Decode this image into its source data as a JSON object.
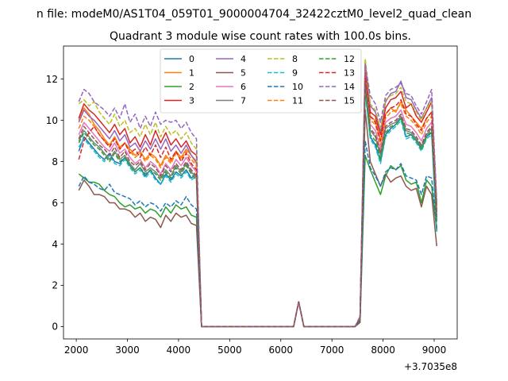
{
  "chart_data": {
    "type": "line",
    "suptitle": "n file: modeM0/AS1T04_059T01_9000004704_32422cztM0_level2_quad_clean",
    "title": "Quadrant 3 module wise count rates with 100.0s bins.",
    "xlabel": "",
    "ylabel": "",
    "x_offset_label": "+3.7035e8",
    "xlim": [
      1750,
      9450
    ],
    "ylim": [
      -0.6,
      13.6
    ],
    "x_ticks": [
      2000,
      3000,
      4000,
      5000,
      6000,
      7000,
      8000,
      9000
    ],
    "x_tick_labels": [
      "2000",
      "3000",
      "4000",
      "5000",
      "6000",
      "7000",
      "8000",
      "9000"
    ],
    "y_ticks": [
      0,
      2,
      4,
      6,
      8,
      10,
      12
    ],
    "y_tick_labels": [
      "0",
      "2",
      "4",
      "6",
      "8",
      "10",
      "12"
    ],
    "grid": false,
    "legend": {
      "placement": "top-center",
      "ncol": 4
    },
    "x": [
      2050,
      2150,
      2250,
      2350,
      2450,
      2550,
      2650,
      2750,
      2850,
      2950,
      3050,
      3150,
      3250,
      3350,
      3450,
      3550,
      3650,
      3750,
      3850,
      3950,
      4050,
      4150,
      4250,
      4350,
      4450,
      4550,
      4650,
      4750,
      4850,
      4950,
      5050,
      5150,
      5250,
      5350,
      5450,
      5550,
      5650,
      5750,
      5850,
      5950,
      6050,
      6150,
      6250,
      6350,
      6450,
      6550,
      6650,
      6750,
      6850,
      6950,
      7050,
      7150,
      7250,
      7350,
      7450,
      7550,
      7650,
      7750,
      7850,
      7950,
      8050,
      8150,
      8250,
      8350,
      8450,
      8550,
      8650,
      8750,
      8850,
      8950,
      9050
    ],
    "series": [
      {
        "name": "0",
        "color": "#1f77b4",
        "dash": "solid",
        "values": [
          8.5,
          9.2,
          8.9,
          8.6,
          8.3,
          8.1,
          8.4,
          8.0,
          7.9,
          8.2,
          7.8,
          7.5,
          7.7,
          7.3,
          7.6,
          7.2,
          6.9,
          7.4,
          7.1,
          7.5,
          7.3,
          7.6,
          7.2,
          7.4,
          0,
          0,
          0,
          0,
          0,
          0,
          0,
          0,
          0,
          0,
          0,
          0,
          0,
          0,
          0,
          0,
          0,
          0,
          0,
          1.2,
          0,
          0,
          0,
          0,
          0,
          0,
          0,
          0,
          0,
          0,
          0,
          0.3,
          11.5,
          9.2,
          8.8,
          8.0,
          9.3,
          9.6,
          9.8,
          10.1,
          9.2,
          9.3,
          9.0,
          8.6,
          9.2,
          9.4,
          4.6
        ]
      },
      {
        "name": "1",
        "color": "#ff7f0e",
        "dash": "solid",
        "values": [
          10.0,
          10.6,
          10.3,
          9.8,
          9.5,
          9.1,
          8.8,
          9.2,
          8.7,
          8.9,
          8.6,
          8.3,
          8.5,
          8.1,
          8.4,
          8.2,
          7.8,
          8.3,
          8.0,
          8.5,
          8.2,
          8.6,
          8.3,
          7.9,
          0,
          0,
          0,
          0,
          0,
          0,
          0,
          0,
          0,
          0,
          0,
          0,
          0,
          0,
          0,
          0,
          0,
          0,
          0,
          1.2,
          0,
          0,
          0,
          0,
          0,
          0,
          0,
          0,
          0,
          0,
          0,
          0.4,
          12.9,
          10.2,
          10.0,
          9.0,
          10.3,
          10.6,
          10.4,
          10.9,
          10.5,
          10.2,
          9.9,
          9.6,
          10.1,
          10.4,
          5.7
        ]
      },
      {
        "name": "2",
        "color": "#2ca02c",
        "dash": "solid",
        "values": [
          7.4,
          7.2,
          7.0,
          7.0,
          6.9,
          6.6,
          6.4,
          6.3,
          6.0,
          5.8,
          5.9,
          5.7,
          5.8,
          5.5,
          5.7,
          5.6,
          5.3,
          5.8,
          5.5,
          5.9,
          5.7,
          5.8,
          5.4,
          5.3,
          0,
          0,
          0,
          0,
          0,
          0,
          0,
          0,
          0,
          0,
          0,
          0,
          0,
          0,
          0,
          0,
          0,
          0,
          0,
          1.2,
          0,
          0,
          0,
          0,
          0,
          0,
          0,
          0,
          0,
          0,
          0,
          0.2,
          8.3,
          7.6,
          7.0,
          6.4,
          7.3,
          7.8,
          7.6,
          7.8,
          7.1,
          6.9,
          7.0,
          6.0,
          7.1,
          6.8,
          4.7
        ]
      },
      {
        "name": "3",
        "color": "#d62728",
        "dash": "solid",
        "values": [
          10.1,
          10.8,
          10.5,
          10.3,
          10.0,
          9.7,
          9.4,
          9.8,
          9.3,
          9.6,
          8.9,
          9.2,
          8.7,
          9.3,
          8.8,
          9.5,
          8.9,
          9.4,
          8.8,
          9.1,
          8.7,
          9.0,
          8.5,
          8.3,
          0,
          0,
          0,
          0,
          0,
          0,
          0,
          0,
          0,
          0,
          0,
          0,
          0,
          0,
          0,
          0,
          0,
          0,
          0,
          1.2,
          0,
          0,
          0,
          0,
          0,
          0,
          0,
          0,
          0,
          0,
          0,
          0.4,
          12.6,
          10.4,
          10.2,
          9.3,
          10.6,
          11.0,
          11.1,
          11.4,
          10.6,
          10.8,
          10.2,
          9.9,
          10.4,
          10.9,
          5.9
        ]
      },
      {
        "name": "4",
        "color": "#9467bd",
        "dash": "solid",
        "values": [
          9.9,
          10.5,
          10.2,
          10.0,
          9.7,
          9.4,
          9.1,
          9.5,
          9.0,
          9.3,
          8.7,
          8.9,
          8.5,
          9.0,
          8.6,
          9.1,
          8.6,
          9.1,
          8.5,
          8.8,
          8.4,
          8.8,
          8.3,
          8.0,
          0,
          0,
          0,
          0,
          0,
          0,
          0,
          0,
          0,
          0,
          0,
          0,
          0,
          0,
          0,
          0,
          0,
          0,
          0,
          1.2,
          0,
          0,
          0,
          0,
          0,
          0,
          0,
          0,
          0,
          0,
          0,
          0.4,
          12.8,
          10.7,
          10.4,
          9.5,
          10.9,
          11.3,
          11.4,
          11.9,
          11.1,
          11.0,
          10.5,
          10.1,
          10.6,
          11.1,
          6.0
        ]
      },
      {
        "name": "5",
        "color": "#8c564b",
        "dash": "solid",
        "values": [
          6.6,
          7.1,
          6.8,
          6.4,
          6.4,
          6.3,
          6.0,
          6.0,
          5.7,
          5.7,
          5.6,
          5.3,
          5.5,
          5.1,
          5.3,
          5.2,
          4.8,
          5.4,
          5.1,
          5.5,
          5.3,
          5.4,
          5.0,
          4.9,
          0,
          0,
          0,
          0,
          0,
          0,
          0,
          0,
          0,
          0,
          0,
          0,
          0,
          0,
          0,
          0,
          0,
          0,
          0,
          1.2,
          0,
          0,
          0,
          0,
          0,
          0,
          0,
          0,
          0,
          0,
          0,
          0.2,
          10.5,
          8.0,
          7.4,
          6.8,
          7.4,
          7.0,
          7.2,
          7.3,
          6.8,
          6.6,
          6.7,
          5.8,
          6.8,
          6.4,
          3.9
        ]
      },
      {
        "name": "6",
        "color": "#e377c2",
        "dash": "solid",
        "values": [
          9.3,
          9.9,
          9.6,
          9.3,
          9.0,
          8.7,
          8.5,
          8.9,
          8.4,
          8.6,
          8.2,
          7.9,
          8.1,
          7.7,
          8.0,
          7.8,
          7.4,
          7.9,
          7.6,
          8.1,
          7.8,
          8.2,
          7.8,
          7.5,
          0,
          0,
          0,
          0,
          0,
          0,
          0,
          0,
          0,
          0,
          0,
          0,
          0,
          0,
          0,
          0,
          0,
          0,
          0,
          1.2,
          0,
          0,
          0,
          0,
          0,
          0,
          0,
          0,
          0,
          0,
          0,
          0.3,
          12.1,
          9.8,
          9.5,
          8.6,
          9.9,
          10.1,
          10.2,
          10.5,
          9.8,
          9.7,
          9.4,
          9.0,
          9.6,
          9.9,
          5.4
        ]
      },
      {
        "name": "7",
        "color": "#7f7f7f",
        "dash": "solid",
        "values": [
          9.0,
          9.5,
          9.2,
          8.9,
          8.7,
          8.4,
          8.1,
          8.5,
          8.1,
          8.3,
          7.9,
          7.6,
          7.9,
          7.5,
          7.7,
          7.5,
          7.2,
          7.6,
          7.3,
          7.8,
          7.5,
          7.9,
          7.5,
          7.2,
          0,
          0,
          0,
          0,
          0,
          0,
          0,
          0,
          0,
          0,
          0,
          0,
          0,
          0,
          0,
          0,
          0,
          0,
          0,
          1.2,
          0,
          0,
          0,
          0,
          0,
          0,
          0,
          0,
          0,
          0,
          0,
          0.3,
          11.7,
          9.5,
          9.2,
          8.3,
          9.6,
          9.8,
          9.9,
          10.2,
          9.5,
          9.4,
          9.1,
          8.7,
          9.3,
          9.6,
          5.2
        ]
      },
      {
        "name": "8",
        "color": "#bcbd22",
        "dash": "dashed",
        "values": [
          10.8,
          11.0,
          10.7,
          10.9,
          10.4,
          10.1,
          9.8,
          10.3,
          9.7,
          10.0,
          9.4,
          9.6,
          9.2,
          9.8,
          9.3,
          9.9,
          9.2,
          9.7,
          9.3,
          9.5,
          9.1,
          9.4,
          8.9,
          8.6,
          0,
          0,
          0,
          0,
          0,
          0,
          0,
          0,
          0,
          0,
          0,
          0,
          0,
          0,
          0,
          0,
          0,
          0,
          0,
          1.2,
          0,
          0,
          0,
          0,
          0,
          0,
          0,
          0,
          0,
          0,
          0,
          0.4,
          13.0,
          10.8,
          10.5,
          9.6,
          11.0,
          11.2,
          11.3,
          11.6,
          10.9,
          10.8,
          10.4,
          10.0,
          10.6,
          10.9,
          5.8
        ]
      },
      {
        "name": "9",
        "color": "#17becf",
        "dash": "dashed",
        "values": [
          8.7,
          9.1,
          8.8,
          8.5,
          8.2,
          8.0,
          8.3,
          7.9,
          7.8,
          8.1,
          7.7,
          7.4,
          7.6,
          7.2,
          7.5,
          7.1,
          6.9,
          7.3,
          7.0,
          7.4,
          7.2,
          7.5,
          7.1,
          7.3,
          0,
          0,
          0,
          0,
          0,
          0,
          0,
          0,
          0,
          0,
          0,
          0,
          0,
          0,
          0,
          0,
          0,
          0,
          0,
          1.2,
          0,
          0,
          0,
          0,
          0,
          0,
          0,
          0,
          0,
          0,
          0,
          0.3,
          11.3,
          9.1,
          8.7,
          7.9,
          9.2,
          9.5,
          9.7,
          10.0,
          9.1,
          9.2,
          8.9,
          8.5,
          9.1,
          9.3,
          4.6
        ]
      },
      {
        "name": "10",
        "color": "#1f77b4",
        "dash": "dashed",
        "values": [
          6.8,
          7.3,
          7.0,
          6.9,
          6.7,
          6.6,
          6.9,
          6.5,
          6.4,
          6.3,
          6.2,
          5.9,
          6.1,
          5.8,
          6.0,
          5.9,
          5.6,
          6.0,
          5.8,
          6.1,
          5.9,
          6.3,
          5.9,
          5.7,
          0,
          0,
          0,
          0,
          0,
          0,
          0,
          0,
          0,
          0,
          0,
          0,
          0,
          0,
          0,
          0,
          0,
          0,
          0,
          1.2,
          0,
          0,
          0,
          0,
          0,
          0,
          0,
          0,
          0,
          0,
          0,
          0.2,
          9.0,
          7.7,
          7.3,
          6.8,
          7.5,
          7.7,
          7.6,
          7.9,
          7.3,
          7.2,
          7.1,
          6.4,
          7.3,
          7.2,
          4.8
        ]
      },
      {
        "name": "11",
        "color": "#ff7f0e",
        "dash": "dashed",
        "values": [
          9.6,
          10.2,
          10.0,
          9.7,
          9.3,
          9.0,
          8.8,
          9.2,
          8.6,
          8.9,
          8.5,
          8.2,
          8.4,
          8.0,
          8.3,
          8.1,
          7.7,
          8.2,
          7.9,
          8.4,
          8.1,
          8.5,
          8.1,
          7.8,
          0,
          0,
          0,
          0,
          0,
          0,
          0,
          0,
          0,
          0,
          0,
          0,
          0,
          0,
          0,
          0,
          0,
          0,
          0,
          1.2,
          0,
          0,
          0,
          0,
          0,
          0,
          0,
          0,
          0,
          0,
          0,
          0.4,
          12.4,
          10.0,
          9.8,
          8.8,
          10.1,
          10.4,
          10.5,
          10.8,
          10.2,
          10.0,
          9.7,
          9.3,
          9.9,
          10.2,
          5.6
        ]
      },
      {
        "name": "12",
        "color": "#2ca02c",
        "dash": "dashed",
        "values": [
          8.9,
          9.4,
          9.1,
          8.8,
          8.6,
          8.3,
          8.0,
          8.4,
          8.0,
          8.2,
          7.8,
          7.5,
          7.7,
          7.4,
          7.6,
          7.4,
          7.1,
          7.5,
          7.2,
          7.7,
          7.4,
          7.8,
          7.4,
          7.1,
          0,
          0,
          0,
          0,
          0,
          0,
          0,
          0,
          0,
          0,
          0,
          0,
          0,
          0,
          0,
          0,
          0,
          0,
          0,
          1.2,
          0,
          0,
          0,
          0,
          0,
          0,
          0,
          0,
          0,
          0,
          0,
          0.3,
          11.6,
          9.3,
          9.0,
          8.1,
          9.4,
          9.7,
          9.8,
          10.1,
          9.4,
          9.3,
          9.0,
          8.6,
          9.2,
          9.5,
          5.1
        ]
      },
      {
        "name": "13",
        "color": "#d62728",
        "dash": "dashed",
        "values": [
          8.1,
          9.0,
          9.4,
          9.7,
          9.3,
          9.0,
          8.7,
          9.1,
          8.6,
          8.9,
          8.4,
          8.6,
          8.2,
          8.7,
          8.3,
          8.8,
          8.2,
          8.7,
          8.1,
          8.5,
          8.0,
          8.4,
          7.9,
          7.6,
          0,
          0,
          0,
          0,
          0,
          0,
          0,
          0,
          0,
          0,
          0,
          0,
          0,
          0,
          0,
          0,
          0,
          0,
          0,
          1.2,
          0,
          0,
          0,
          0,
          0,
          0,
          0,
          0,
          0,
          0,
          0,
          0.4,
          12.3,
          10.2,
          9.9,
          9.0,
          10.3,
          10.6,
          10.7,
          11.0,
          10.3,
          10.2,
          9.8,
          9.5,
          10.1,
          10.4,
          5.5
        ]
      },
      {
        "name": "14",
        "color": "#9467bd",
        "dash": "dashed",
        "values": [
          10.9,
          11.5,
          11.3,
          10.9,
          10.7,
          10.5,
          10.2,
          10.6,
          10.1,
          10.8,
          9.9,
          10.3,
          9.6,
          10.2,
          9.7,
          10.4,
          9.8,
          10.0,
          9.9,
          10.0,
          9.6,
          9.9,
          9.4,
          9.1,
          0,
          0,
          0,
          0,
          0,
          0,
          0,
          0,
          0,
          0,
          0,
          0,
          0,
          0,
          0,
          0,
          0,
          0,
          0,
          1.2,
          0,
          0,
          0,
          0,
          0,
          0,
          0,
          0,
          0,
          0,
          0,
          0.5,
          12.7,
          11.2,
          10.8,
          9.9,
          11.2,
          11.5,
          11.6,
          11.8,
          11.3,
          11.2,
          10.7,
          10.3,
          10.9,
          11.5,
          6.1
        ]
      },
      {
        "name": "15",
        "color": "#8c564b",
        "dash": "dashed",
        "values": [
          9.1,
          9.7,
          9.4,
          9.1,
          8.8,
          8.6,
          8.3,
          8.7,
          8.2,
          8.5,
          8.0,
          7.8,
          8.0,
          7.6,
          7.9,
          7.7,
          7.3,
          7.8,
          7.5,
          7.9,
          7.6,
          8.0,
          7.6,
          7.3,
          0,
          0,
          0,
          0,
          0,
          0,
          0,
          0,
          0,
          0,
          0,
          0,
          0,
          0,
          0,
          0,
          0,
          0,
          0,
          1.2,
          0,
          0,
          0,
          0,
          0,
          0,
          0,
          0,
          0,
          0,
          0,
          0.3,
          11.9,
          9.6,
          9.3,
          8.4,
          9.7,
          9.9,
          10.0,
          10.3,
          9.6,
          9.5,
          9.2,
          8.8,
          9.4,
          9.7,
          5.3
        ]
      }
    ]
  }
}
